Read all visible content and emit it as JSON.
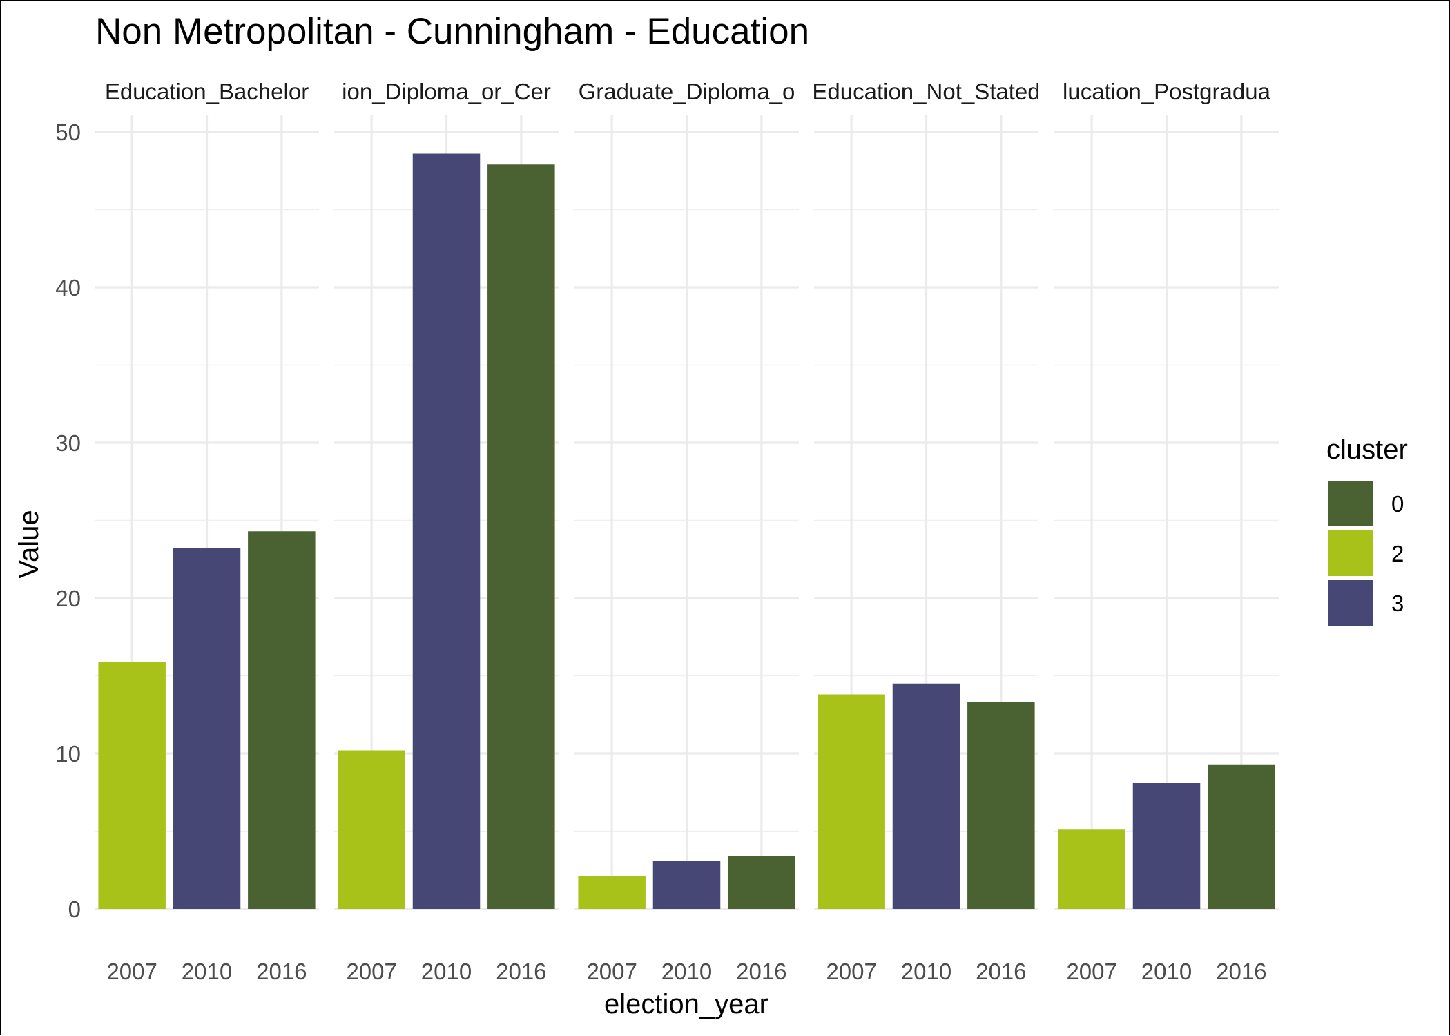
{
  "chart_data": {
    "type": "bar",
    "title": "Non Metropolitan - Cunningham - Education",
    "xlabel": "election_year",
    "ylabel": "Value",
    "ylim": [
      0,
      50
    ],
    "yticks": [
      0,
      10,
      20,
      30,
      40,
      50
    ],
    "grid": true,
    "legend": {
      "title": "cluster",
      "position": "right",
      "entries": [
        {
          "label": "0",
          "color": "#4a6131"
        },
        {
          "label": "2",
          "color": "#a9c21a"
        },
        {
          "label": "3",
          "color": "#474775"
        }
      ]
    },
    "categories": [
      "2007",
      "2010",
      "2016"
    ],
    "bar_clusters": [
      "2",
      "3",
      "0"
    ],
    "panels": [
      {
        "label": "Education_Bachelor",
        "values": [
          15.9,
          23.2,
          24.3
        ]
      },
      {
        "label": "ion_Diploma_or_Cer",
        "values": [
          10.2,
          48.6,
          47.9
        ]
      },
      {
        "label": "Graduate_Diploma_o",
        "values": [
          2.1,
          3.1,
          3.4
        ]
      },
      {
        "label": "Education_Not_Stated",
        "values": [
          13.8,
          14.5,
          13.3
        ]
      },
      {
        "label": "lucation_Postgradua",
        "values": [
          5.1,
          8.1,
          9.3
        ]
      }
    ]
  }
}
